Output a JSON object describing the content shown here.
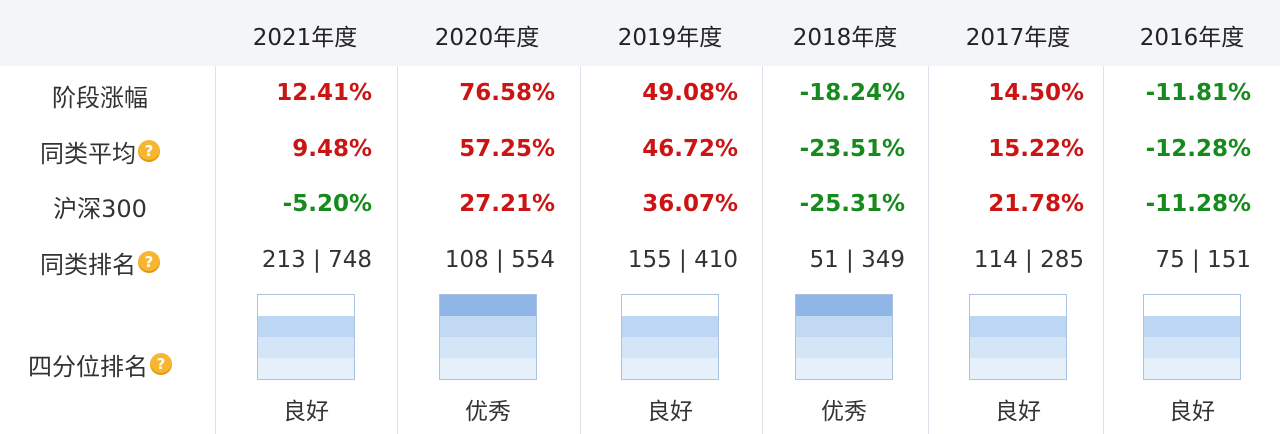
{
  "columns": [
    "2021年度",
    "2020年度",
    "2019年度",
    "2018年度",
    "2017年度",
    "2016年度"
  ],
  "row_labels": {
    "stage_gain": "阶段涨幅",
    "peer_avg": "同类平均",
    "hs300": "沪深300",
    "peer_rank": "同类排名",
    "quartile_rank": "四分位排名"
  },
  "help_icon": "?",
  "stage_gain": [
    "12.41%",
    "76.58%",
    "49.08%",
    "-18.24%",
    "14.50%",
    "-11.81%"
  ],
  "peer_avg": [
    "9.48%",
    "57.25%",
    "46.72%",
    "-23.51%",
    "15.22%",
    "-12.28%"
  ],
  "hs300": [
    "-5.20%",
    "27.21%",
    "36.07%",
    "-25.31%",
    "21.78%",
    "-11.28%"
  ],
  "peer_rank": [
    "213 | 748",
    "108 | 554",
    "155 | 410",
    "51 | 349",
    "114 | 285",
    "75 | 151"
  ],
  "quartile": {
    "levels": [
      3,
      4,
      3,
      4,
      3,
      3
    ],
    "labels": [
      "良好",
      "优秀",
      "良好",
      "优秀",
      "良好",
      "良好"
    ]
  },
  "colors": {
    "positive": "#cc1414",
    "negative": "#168a1c",
    "quartile_fill": "#bcd6f3",
    "quartile_top": "#8fb6e6"
  }
}
